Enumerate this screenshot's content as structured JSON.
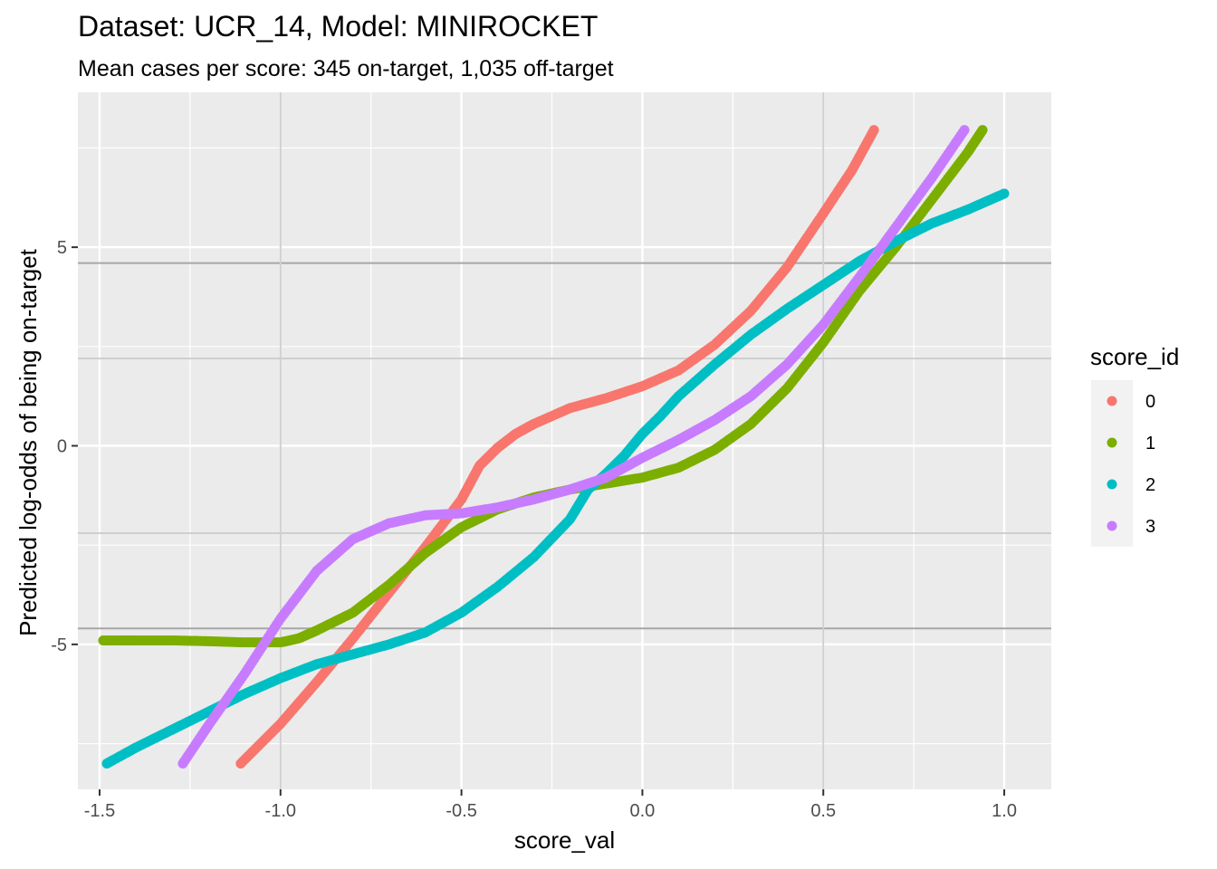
{
  "chart_data": {
    "type": "scatter",
    "title": "Dataset: UCR_14, Model: MINIROCKET",
    "subtitle": "Mean cases per score: 345 on-target, 1,035 off-target",
    "xlabel": "score_val",
    "ylabel": "Predicted log-odds of being on-target",
    "xlim": [
      -1.56,
      1.13
    ],
    "ylim": [
      -8.65,
      8.9
    ],
    "x_ticks": [
      -1.5,
      -1.0,
      -0.5,
      0.0,
      0.5,
      1.0
    ],
    "x_tick_labels": [
      "-1.5",
      "-1.0",
      "-0.5",
      "0.0",
      "0.5",
      "1.0"
    ],
    "y_ticks": [
      -5,
      0,
      5
    ],
    "y_tick_labels": [
      "-5",
      "0",
      "5"
    ],
    "reference_lines": {
      "horizontal": [
        4.6,
        2.2,
        -2.2,
        -4.6
      ],
      "vertical": [
        -1.0,
        0.5
      ]
    },
    "background": "#ebebeb",
    "grid": true,
    "legend": {
      "title": "score_id",
      "placement": "right"
    },
    "series": [
      {
        "name": "0",
        "color": "#f8766d",
        "points": [
          [
            -1.11,
            -8.0
          ],
          [
            -1.0,
            -7.0
          ],
          [
            -0.9,
            -5.95
          ],
          [
            -0.8,
            -4.85
          ],
          [
            -0.7,
            -3.7
          ],
          [
            -0.6,
            -2.55
          ],
          [
            -0.5,
            -1.35
          ],
          [
            -0.45,
            -0.5
          ],
          [
            -0.4,
            -0.05
          ],
          [
            -0.35,
            0.3
          ],
          [
            -0.3,
            0.55
          ],
          [
            -0.2,
            0.95
          ],
          [
            -0.1,
            1.2
          ],
          [
            0.0,
            1.5
          ],
          [
            0.1,
            1.9
          ],
          [
            0.2,
            2.55
          ],
          [
            0.3,
            3.4
          ],
          [
            0.4,
            4.5
          ],
          [
            0.5,
            5.85
          ],
          [
            0.58,
            6.95
          ],
          [
            0.64,
            7.95
          ]
        ]
      },
      {
        "name": "1",
        "color": "#7cae00",
        "points": [
          [
            -1.49,
            -4.9
          ],
          [
            -1.4,
            -4.9
          ],
          [
            -1.3,
            -4.9
          ],
          [
            -1.2,
            -4.92
          ],
          [
            -1.1,
            -4.95
          ],
          [
            -1.0,
            -4.95
          ],
          [
            -0.95,
            -4.85
          ],
          [
            -0.9,
            -4.65
          ],
          [
            -0.8,
            -4.2
          ],
          [
            -0.7,
            -3.5
          ],
          [
            -0.6,
            -2.7
          ],
          [
            -0.5,
            -2.05
          ],
          [
            -0.4,
            -1.6
          ],
          [
            -0.3,
            -1.3
          ],
          [
            -0.2,
            -1.1
          ],
          [
            -0.1,
            -0.95
          ],
          [
            0.0,
            -0.8
          ],
          [
            0.1,
            -0.55
          ],
          [
            0.2,
            -0.1
          ],
          [
            0.3,
            0.55
          ],
          [
            0.4,
            1.45
          ],
          [
            0.5,
            2.6
          ],
          [
            0.6,
            3.9
          ],
          [
            0.7,
            5.0
          ],
          [
            0.8,
            6.2
          ],
          [
            0.9,
            7.4
          ],
          [
            0.94,
            7.95
          ]
        ]
      },
      {
        "name": "2",
        "color": "#00bfc4",
        "points": [
          [
            -1.48,
            -8.0
          ],
          [
            -1.4,
            -7.6
          ],
          [
            -1.3,
            -7.15
          ],
          [
            -1.2,
            -6.7
          ],
          [
            -1.1,
            -6.25
          ],
          [
            -1.0,
            -5.85
          ],
          [
            -0.9,
            -5.5
          ],
          [
            -0.8,
            -5.25
          ],
          [
            -0.7,
            -5.0
          ],
          [
            -0.6,
            -4.7
          ],
          [
            -0.5,
            -4.2
          ],
          [
            -0.4,
            -3.55
          ],
          [
            -0.3,
            -2.8
          ],
          [
            -0.2,
            -1.85
          ],
          [
            -0.15,
            -1.1
          ],
          [
            -0.1,
            -0.7
          ],
          [
            -0.05,
            -0.25
          ],
          [
            0.0,
            0.3
          ],
          [
            0.05,
            0.75
          ],
          [
            0.1,
            1.25
          ],
          [
            0.2,
            2.05
          ],
          [
            0.3,
            2.8
          ],
          [
            0.4,
            3.45
          ],
          [
            0.5,
            4.05
          ],
          [
            0.6,
            4.65
          ],
          [
            0.7,
            5.15
          ],
          [
            0.8,
            5.6
          ],
          [
            0.9,
            5.95
          ],
          [
            1.0,
            6.35
          ]
        ]
      },
      {
        "name": "3",
        "color": "#c77cff",
        "points": [
          [
            -1.27,
            -8.0
          ],
          [
            -1.2,
            -7.05
          ],
          [
            -1.1,
            -5.75
          ],
          [
            -1.0,
            -4.35
          ],
          [
            -0.9,
            -3.15
          ],
          [
            -0.8,
            -2.35
          ],
          [
            -0.7,
            -1.95
          ],
          [
            -0.6,
            -1.75
          ],
          [
            -0.5,
            -1.7
          ],
          [
            -0.4,
            -1.55
          ],
          [
            -0.3,
            -1.35
          ],
          [
            -0.2,
            -1.1
          ],
          [
            -0.1,
            -0.8
          ],
          [
            0.0,
            -0.3
          ],
          [
            0.1,
            0.15
          ],
          [
            0.2,
            0.65
          ],
          [
            0.3,
            1.25
          ],
          [
            0.4,
            2.05
          ],
          [
            0.5,
            3.05
          ],
          [
            0.6,
            4.25
          ],
          [
            0.7,
            5.5
          ],
          [
            0.8,
            6.75
          ],
          [
            0.89,
            7.95
          ]
        ]
      }
    ]
  }
}
